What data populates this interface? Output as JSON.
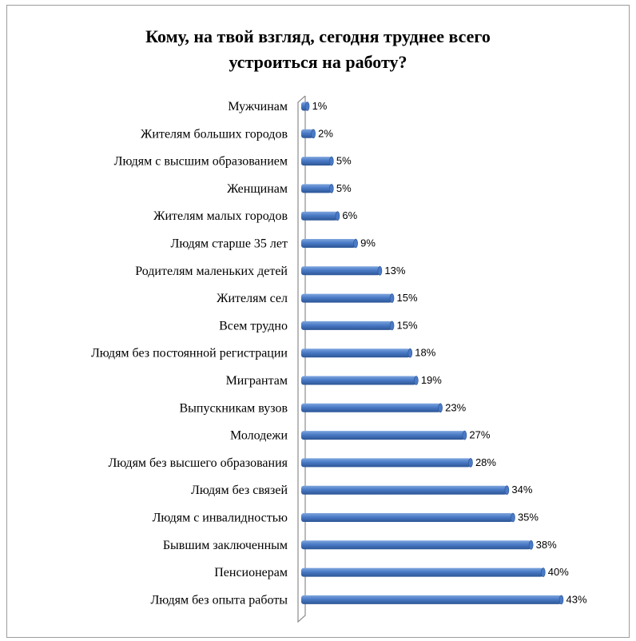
{
  "colors": {
    "bar_top": "#7ea6de",
    "bar_mid": "#4a7ac6",
    "bar_bottom": "#2c5595",
    "axis": "#8c8c8c"
  },
  "chart_data": {
    "type": "bar",
    "orientation": "horizontal",
    "title": "Кому, на твой взгляд, сегодня труднее всего устроиться на работу?",
    "title_lines": [
      "Кому, на твой взгляд, сегодня труднее всего",
      "устроиться на работу?"
    ],
    "xlabel": "",
    "ylabel": "",
    "xlim": [
      0,
      45
    ],
    "grid": false,
    "legend": "none",
    "value_suffix": "%",
    "categories": [
      "Мужчинам",
      "Жителям больших городов",
      "Людям с высшим образованием",
      "Женщинам",
      "Жителям малых городов",
      "Людям старше 35 лет",
      "Родителям маленьких детей",
      "Жителям сел",
      "Всем трудно",
      "Людям без постоянной регистрации",
      "Мигрантам",
      "Выпускникам вузов",
      "Молодежи",
      "Людям без высшего образования",
      "Людям без связей",
      "Людям с инвалидностью",
      "Бывшим заключенным",
      "Пенсионерам",
      "Людям без опыта работы"
    ],
    "values": [
      1,
      2,
      5,
      5,
      6,
      9,
      13,
      15,
      15,
      18,
      19,
      23,
      27,
      28,
      34,
      35,
      38,
      40,
      43
    ],
    "value_labels": [
      "1%",
      "2%",
      "5%",
      "5%",
      "6%",
      "9%",
      "13%",
      "15%",
      "15%",
      "18%",
      "19%",
      "23%",
      "27%",
      "28%",
      "34%",
      "35%",
      "38%",
      "40%",
      "43%"
    ]
  }
}
